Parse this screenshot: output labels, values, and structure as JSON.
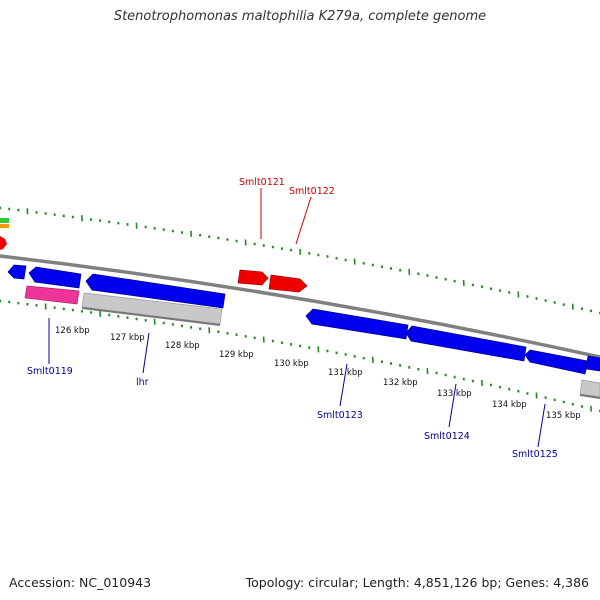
{
  "title": "Stenotrophomonas maltophilia K279a, complete genome",
  "footer": {
    "accession": "Accession: NC_010943",
    "stats": "Topology: circular; Length: 4,851,126 bp; Genes: 4,386"
  },
  "colors": {
    "backbone": "#808080",
    "cds": "#0000ee",
    "rna_gene": "#ee0000",
    "pink_feature": "#ee3399",
    "gray_feature": "#bdbdbd",
    "tick": "#228b22",
    "forward_label": "#cc0000",
    "reverse_label": "#000099"
  },
  "ticks": {
    "unit": "kbp",
    "labels": [
      "126 kbp",
      "127 kbp",
      "128 kbp",
      "129 kbp",
      "130 kbp",
      "131 kbp",
      "132 kbp",
      "133 kbp",
      "134 kbp",
      "135 kbp"
    ]
  },
  "gene_labels": {
    "forward": [
      "Smlt0121",
      "Smlt0122"
    ],
    "reverse": [
      "Smlt0119",
      "lhr",
      "Smlt0123",
      "Smlt0124",
      "Smlt0125"
    ]
  }
}
